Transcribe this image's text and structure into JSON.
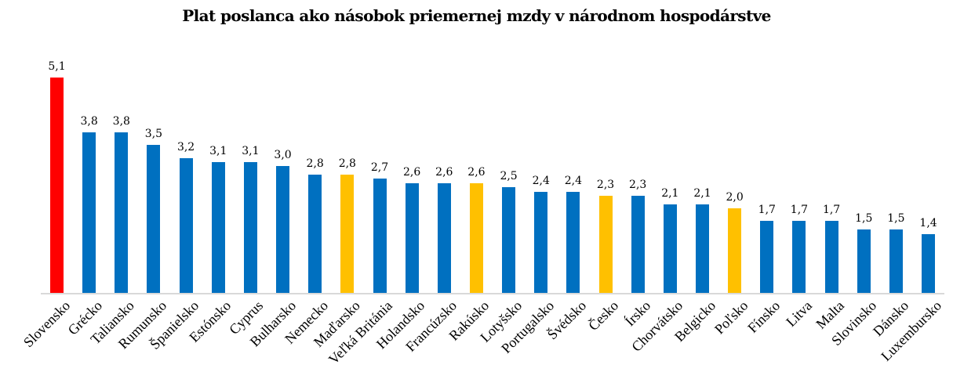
{
  "chart_data": {
    "type": "bar",
    "title": "Plat poslanca ako násobok priemernej mzdy v národnom hospodárstve",
    "xlabel": "",
    "ylabel": "",
    "ylim": [
      0,
      5.1
    ],
    "grid": false,
    "legend": null,
    "categories": [
      "Slovensko",
      "Grécko",
      "Taliansko",
      "Rumunsko",
      "Španielsko",
      "Estónsko",
      "Cyprus",
      "Bulharsko",
      "Nemecko",
      "Maďarsko",
      "Veľká Británia",
      "Holandsko",
      "Francúzsko",
      "Rakúsko",
      "Lotyšsko",
      "Portugalsko",
      "Švédsko",
      "Česko",
      "Írsko",
      "Chorvátsko",
      "Belgicko",
      "Poľsko",
      "Fínsko",
      "Litva",
      "Malta",
      "Slovinsko",
      "Dánsko",
      "Luxembursko"
    ],
    "values": [
      5.1,
      3.8,
      3.8,
      3.5,
      3.2,
      3.1,
      3.1,
      3.0,
      2.8,
      2.8,
      2.7,
      2.6,
      2.6,
      2.6,
      2.5,
      2.4,
      2.4,
      2.3,
      2.3,
      2.1,
      2.1,
      2.0,
      1.7,
      1.7,
      1.7,
      1.5,
      1.5,
      1.4
    ],
    "value_labels": [
      "5,1",
      "3,8",
      "3,8",
      "3,5",
      "3,2",
      "3,1",
      "3,1",
      "3,0",
      "2,8",
      "2,8",
      "2,7",
      "2,6",
      "2,6",
      "2,6",
      "2,5",
      "2,4",
      "2,4",
      "2,3",
      "2,3",
      "2,1",
      "2,1",
      "2,0",
      "1,7",
      "1,7",
      "1,7",
      "1,5",
      "1,5",
      "1,4"
    ],
    "bar_colors": [
      "#ff0000",
      "#0070c0",
      "#0070c0",
      "#0070c0",
      "#0070c0",
      "#0070c0",
      "#0070c0",
      "#0070c0",
      "#0070c0",
      "#ffc000",
      "#0070c0",
      "#0070c0",
      "#0070c0",
      "#ffc000",
      "#0070c0",
      "#0070c0",
      "#0070c0",
      "#ffc000",
      "#0070c0",
      "#0070c0",
      "#0070c0",
      "#ffc000",
      "#0070c0",
      "#0070c0",
      "#0070c0",
      "#0070c0",
      "#0070c0",
      "#0070c0"
    ]
  },
  "colors": {
    "highlight": "#ff0000",
    "default": "#0070c0",
    "neighbors": "#ffc000",
    "axis": "#d9d9d9"
  }
}
